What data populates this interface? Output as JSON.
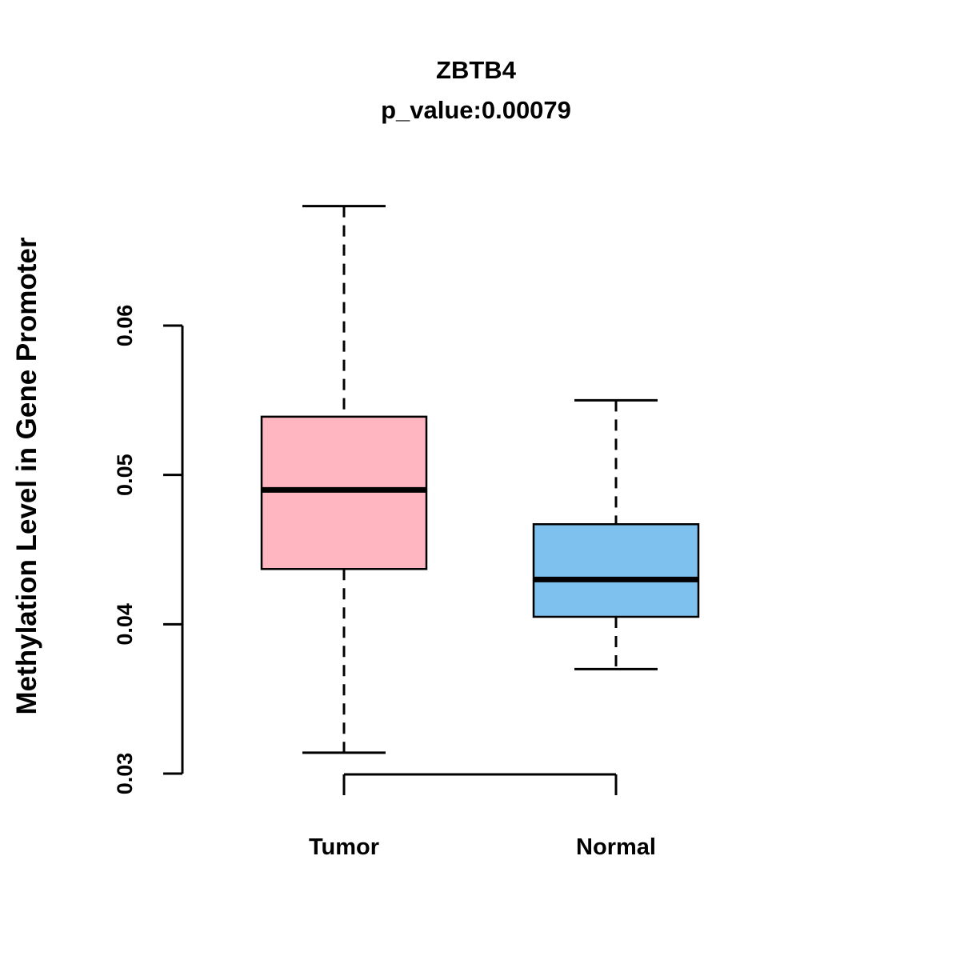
{
  "title": "ZBTB4",
  "subtitle": "p_value:0.00079",
  "y_axis_label": "Methylation Level in Gene Promoter",
  "colors": {
    "axis": "#000000",
    "background": "#FFFFFF",
    "tumor_box": "#FFB6C1",
    "normal_box": "#7EC0EE"
  },
  "chart_data": {
    "type": "boxplot",
    "title": "ZBTB4",
    "subtitle": "p_value:0.00079",
    "ylabel": "Methylation Level in Gene Promoter",
    "categories": [
      "Tumor",
      "Normal"
    ],
    "series": [
      {
        "name": "Tumor",
        "whisker_low": 0.0314,
        "q1": 0.0437,
        "median": 0.049,
        "q3": 0.0539,
        "whisker_high": 0.068,
        "color": "#FFB6C1"
      },
      {
        "name": "Normal",
        "whisker_low": 0.037,
        "q1": 0.0405,
        "median": 0.043,
        "q3": 0.0467,
        "whisker_high": 0.055,
        "color": "#7EC0EE"
      }
    ],
    "ylim": [
      0.03,
      0.06
    ],
    "yticks": [
      0.03,
      0.04,
      0.05,
      0.06
    ],
    "ytick_labels": [
      "0.03",
      "0.04",
      "0.05",
      "0.06"
    ],
    "grid": false,
    "legend": "none"
  }
}
